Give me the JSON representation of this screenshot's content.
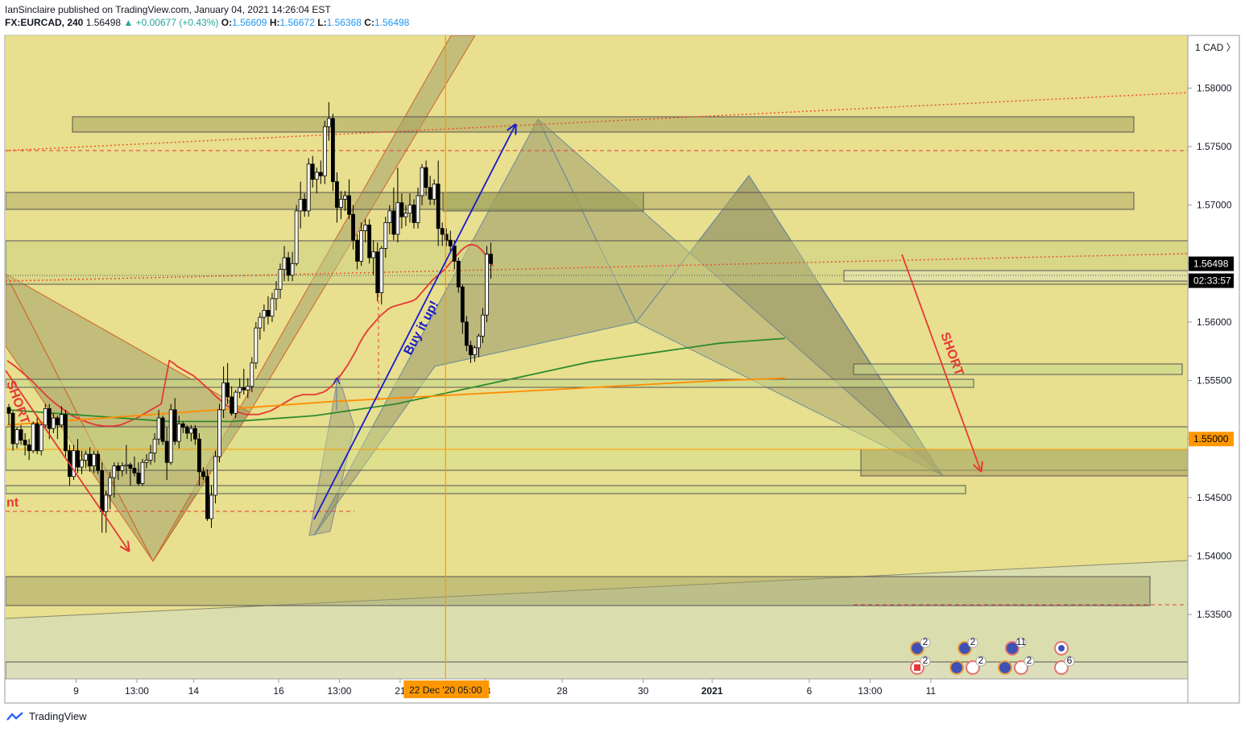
{
  "header": {
    "publisher_line": "IanSinclaire published on TradingView.com, January 04, 2021 14:26:04 EST",
    "symbol": "FX:EURCAD, 240",
    "last": "1.56498",
    "change": "▲ +0.00677 (+0.43%)",
    "o_label": "O:",
    "o": "1.56609",
    "h_label": "H:",
    "h": "1.56672",
    "l_label": "L:",
    "l": "1.56368",
    "c_label": "C:",
    "c": "1.56498"
  },
  "footer": {
    "brand": "TradingView"
  },
  "colors": {
    "background": "#e8df8f",
    "up_candle": "#ffffff",
    "down_candle": "#000000",
    "ma_red": "#e53935",
    "ma_green": "#2e8b2e",
    "ma_orange": "#ff8c00",
    "trend_blue": "#1a1acc",
    "short_red": "#e53935"
  },
  "chart_data": {
    "type": "candlestick",
    "currency": "CAD",
    "currency_label": "1  CAD  〉",
    "ylim": [
      1.5295,
      1.5845
    ],
    "y_ticks": [
      "1.58000",
      "1.57500",
      "1.57000",
      "1.56500",
      "1.56000",
      "1.55500",
      "1.55000",
      "1.54500",
      "1.54000",
      "1.53500"
    ],
    "y_tick_values": [
      1.58,
      1.575,
      1.57,
      1.565,
      1.56,
      1.555,
      1.55,
      1.545,
      1.54,
      1.535
    ],
    "x_ticks": [
      {
        "i": 17,
        "label": "9"
      },
      {
        "i": 32,
        "label": "13:00"
      },
      {
        "i": 46,
        "label": "14"
      },
      {
        "i": 67,
        "label": "16"
      },
      {
        "i": 82,
        "label": "13:00"
      },
      {
        "i": 97,
        "label": "21"
      },
      {
        "i": 118,
        "label": "23"
      },
      {
        "i": 137,
        "label": "28"
      },
      {
        "i": 157,
        "label": "30"
      },
      {
        "i": 174,
        "label": "2021"
      },
      {
        "i": 198,
        "label": "6"
      },
      {
        "i": 213,
        "label": "13:00"
      },
      {
        "i": 228,
        "label": "11"
      }
    ],
    "crosshair": {
      "i": 109,
      "label": "22 Dec '20   05:00"
    },
    "price_labels": [
      {
        "value": 1.56498,
        "label": "1.56498"
      },
      {
        "value": 1.5638,
        "label": "02:33:57"
      },
      {
        "value": 1.55,
        "label": "1.55000"
      }
    ],
    "candles": [
      [
        1.5527,
        1.553,
        1.5512,
        1.5522
      ],
      [
        1.5522,
        1.5524,
        1.549,
        1.5496
      ],
      [
        1.5496,
        1.551,
        1.5492,
        1.5508
      ],
      [
        1.5508,
        1.5512,
        1.5495,
        1.5499
      ],
      [
        1.5499,
        1.5505,
        1.5486,
        1.5495
      ],
      [
        1.5495,
        1.55,
        1.5482,
        1.549
      ],
      [
        1.549,
        1.5515,
        1.5488,
        1.5513
      ],
      [
        1.5513,
        1.552,
        1.5487,
        1.549
      ],
      [
        1.549,
        1.5515,
        1.5486,
        1.5512
      ],
      [
        1.5512,
        1.553,
        1.5508,
        1.5526
      ],
      [
        1.5526,
        1.553,
        1.55,
        1.5509
      ],
      [
        1.5509,
        1.5522,
        1.5505,
        1.5518
      ],
      [
        1.5518,
        1.552,
        1.55,
        1.5512
      ],
      [
        1.5512,
        1.5528,
        1.551,
        1.5521
      ],
      [
        1.5521,
        1.5525,
        1.5485,
        1.549
      ],
      [
        1.549,
        1.5495,
        1.546,
        1.5468
      ],
      [
        1.5468,
        1.5495,
        1.5465,
        1.549
      ],
      [
        1.549,
        1.55,
        1.5471,
        1.5476
      ],
      [
        1.5476,
        1.549,
        1.547,
        1.5482
      ],
      [
        1.5482,
        1.549,
        1.5475,
        1.5487
      ],
      [
        1.5487,
        1.5493,
        1.5472,
        1.5477
      ],
      [
        1.5477,
        1.549,
        1.5471,
        1.5487
      ],
      [
        1.5487,
        1.549,
        1.547,
        1.5473
      ],
      [
        1.5473,
        1.548,
        1.542,
        1.5438
      ],
      [
        1.5438,
        1.5456,
        1.542,
        1.5452
      ],
      [
        1.5452,
        1.5472,
        1.544,
        1.5467
      ],
      [
        1.5467,
        1.548,
        1.545,
        1.5477
      ],
      [
        1.5477,
        1.548,
        1.5465,
        1.5473
      ],
      [
        1.5473,
        1.548,
        1.5468,
        1.5477
      ],
      [
        1.5477,
        1.5495,
        1.547,
        1.5478
      ],
      [
        1.5478,
        1.548,
        1.546,
        1.5475
      ],
      [
        1.5475,
        1.5485,
        1.5468,
        1.5471
      ],
      [
        1.5471,
        1.548,
        1.546,
        1.5462
      ],
      [
        1.5462,
        1.5483,
        1.546,
        1.548
      ],
      [
        1.548,
        1.5487,
        1.5475,
        1.5482
      ],
      [
        1.5482,
        1.5495,
        1.5478,
        1.5488
      ],
      [
        1.5488,
        1.5505,
        1.548,
        1.55
      ],
      [
        1.55,
        1.5525,
        1.5495,
        1.5518
      ],
      [
        1.5518,
        1.552,
        1.5495,
        1.5498
      ],
      [
        1.5498,
        1.551,
        1.5465,
        1.548
      ],
      [
        1.548,
        1.553,
        1.5478,
        1.5525
      ],
      [
        1.5525,
        1.5535,
        1.5495,
        1.5498
      ],
      [
        1.5498,
        1.552,
        1.5492,
        1.5513
      ],
      [
        1.5513,
        1.5515,
        1.5505,
        1.551
      ],
      [
        1.551,
        1.5512,
        1.55,
        1.5505
      ],
      [
        1.5505,
        1.5512,
        1.5498,
        1.5509
      ],
      [
        1.5509,
        1.5512,
        1.5495,
        1.55
      ],
      [
        1.55,
        1.5505,
        1.546,
        1.5472
      ],
      [
        1.5472,
        1.5476,
        1.5465,
        1.5468
      ],
      [
        1.5468,
        1.5474,
        1.543,
        1.5432
      ],
      [
        1.5432,
        1.546,
        1.5424,
        1.5452
      ],
      [
        1.5452,
        1.549,
        1.5445,
        1.5485
      ],
      [
        1.5485,
        1.553,
        1.548,
        1.5525
      ],
      [
        1.5525,
        1.5562,
        1.5518,
        1.5548
      ],
      [
        1.5548,
        1.5565,
        1.553,
        1.5536
      ],
      [
        1.5536,
        1.5545,
        1.552,
        1.5522
      ],
      [
        1.5522,
        1.5542,
        1.5518,
        1.554
      ],
      [
        1.554,
        1.5552,
        1.5535,
        1.5544
      ],
      [
        1.5544,
        1.556,
        1.5538,
        1.5542
      ],
      [
        1.5542,
        1.5552,
        1.5535,
        1.5545
      ],
      [
        1.5545,
        1.557,
        1.554,
        1.5565
      ],
      [
        1.5565,
        1.56,
        1.556,
        1.5595
      ],
      [
        1.5595,
        1.5608,
        1.5585,
        1.5604
      ],
      [
        1.5604,
        1.5615,
        1.5592,
        1.561
      ],
      [
        1.561,
        1.5622,
        1.5598,
        1.5605
      ],
      [
        1.5605,
        1.5625,
        1.56,
        1.562
      ],
      [
        1.562,
        1.5635,
        1.561,
        1.5628
      ],
      [
        1.5628,
        1.565,
        1.562,
        1.5645
      ],
      [
        1.5645,
        1.5665,
        1.5635,
        1.5655
      ],
      [
        1.5655,
        1.566,
        1.5635,
        1.564
      ],
      [
        1.564,
        1.566,
        1.5635,
        1.565
      ],
      [
        1.565,
        1.57,
        1.5648,
        1.5695
      ],
      [
        1.5695,
        1.572,
        1.568,
        1.5705
      ],
      [
        1.5705,
        1.571,
        1.569,
        1.5695
      ],
      [
        1.5695,
        1.574,
        1.569,
        1.5735
      ],
      [
        1.5735,
        1.5742,
        1.5715,
        1.5722
      ],
      [
        1.5722,
        1.5732,
        1.571,
        1.5728
      ],
      [
        1.5728,
        1.5738,
        1.5718,
        1.5725
      ],
      [
        1.5725,
        1.5772,
        1.5718,
        1.5767
      ],
      [
        1.5767,
        1.5788,
        1.5755,
        1.5774
      ],
      [
        1.5774,
        1.5778,
        1.5712,
        1.572
      ],
      [
        1.572,
        1.5728,
        1.5685,
        1.5698
      ],
      [
        1.5698,
        1.5712,
        1.5688,
        1.5705
      ],
      [
        1.5705,
        1.5712,
        1.5695,
        1.5708
      ],
      [
        1.5708,
        1.5722,
        1.5688,
        1.5692
      ],
      [
        1.5692,
        1.57,
        1.5662,
        1.567
      ],
      [
        1.567,
        1.5675,
        1.5645,
        1.5652
      ],
      [
        1.5652,
        1.5685,
        1.5648,
        1.5678
      ],
      [
        1.5678,
        1.5688,
        1.5668,
        1.5683
      ],
      [
        1.5683,
        1.5688,
        1.565,
        1.5655
      ],
      [
        1.5655,
        1.567,
        1.564,
        1.566
      ],
      [
        1.566,
        1.5668,
        1.5618,
        1.5625
      ],
      [
        1.5625,
        1.5665,
        1.5615,
        1.5663
      ],
      [
        1.5663,
        1.569,
        1.5655,
        1.5685
      ],
      [
        1.5685,
        1.57,
        1.5675,
        1.5695
      ],
      [
        1.5695,
        1.5715,
        1.567,
        1.5675
      ],
      [
        1.5675,
        1.5732,
        1.5668,
        1.5702
      ],
      [
        1.5702,
        1.571,
        1.568,
        1.569
      ],
      [
        1.569,
        1.57,
        1.5682,
        1.5693
      ],
      [
        1.5693,
        1.571,
        1.5685,
        1.57
      ],
      [
        1.57,
        1.5705,
        1.568,
        1.5685
      ],
      [
        1.5685,
        1.5715,
        1.568,
        1.5708
      ],
      [
        1.5708,
        1.5735,
        1.57,
        1.5732
      ],
      [
        1.5732,
        1.5738,
        1.5708,
        1.5715
      ],
      [
        1.5715,
        1.5725,
        1.57,
        1.5705
      ],
      [
        1.5705,
        1.5722,
        1.57,
        1.5718
      ],
      [
        1.5718,
        1.5738,
        1.5665,
        1.568
      ],
      [
        1.568,
        1.5685,
        1.5665,
        1.5675
      ],
      [
        1.5675,
        1.568,
        1.5665,
        1.567
      ],
      [
        1.567,
        1.5678,
        1.566,
        1.5665
      ],
      [
        1.5665,
        1.567,
        1.5645,
        1.5652
      ],
      [
        1.5652,
        1.5655,
        1.5625,
        1.563
      ],
      [
        1.563,
        1.5632,
        1.559,
        1.56
      ],
      [
        1.56,
        1.5605,
        1.5575,
        1.558
      ],
      [
        1.558,
        1.5584,
        1.5565,
        1.5572
      ],
      [
        1.5572,
        1.558,
        1.5566,
        1.5578
      ],
      [
        1.5578,
        1.559,
        1.557,
        1.5588
      ],
      [
        1.5588,
        1.5612,
        1.5582,
        1.5606
      ],
      [
        1.5606,
        1.5665,
        1.56,
        1.5658
      ],
      [
        1.5658,
        1.5668,
        1.5637,
        1.565
      ]
    ],
    "ma_red": [
      1.5567,
      1.5565,
      1.5562,
      1.556,
      1.5558,
      1.5556,
      1.5554,
      1.5551,
      1.5548,
      1.5545,
      1.5542,
      1.5538,
      1.5535,
      1.5532,
      1.5529,
      1.5527,
      1.5525,
      1.5523,
      1.5522,
      1.5521,
      1.5521,
      1.5521,
      1.5521,
      1.5522,
      1.5523,
      1.5524,
      1.5526,
      1.5528,
      1.553,
      1.5532,
      1.5534,
      1.5536,
      1.5537,
      1.5538,
      1.5538,
      1.5538,
      1.5538,
      1.5539,
      1.554,
      1.5542,
      1.5545,
      1.5549,
      1.5553,
      1.5558,
      1.5563,
      1.5569,
      1.5575,
      1.5582,
      1.5588,
      1.5593,
      1.5597,
      1.5601,
      1.5605,
      1.5608,
      1.5611,
      1.5613,
      1.5614,
      1.5615,
      1.5616,
      1.5617,
      1.5618,
      1.562,
      1.5624,
      1.5628,
      1.5632,
      1.5636,
      1.5639,
      1.5642,
      1.5645,
      1.5649,
      1.5653,
      1.5657,
      1.5661,
      1.5664,
      1.5666,
      1.5666,
      1.5665,
      1.5662,
      1.5658,
      1.5652,
      1.5648
    ],
    "ma_red_start": 40,
    "ma_green_start": 0,
    "ma_green": [
      1.5525,
      1.5524,
      1.5523,
      1.5522,
      1.5521,
      1.552,
      1.5519,
      1.5518,
      1.5517,
      1.5516,
      1.5515,
      1.5515,
      1.5515,
      1.5515,
      1.5515,
      1.5516,
      1.5517,
      1.5518,
      1.5519,
      1.552,
      1.5522,
      1.5524,
      1.5526,
      1.5528,
      1.553,
      1.5533,
      1.5536,
      1.5539,
      1.5542,
      1.5545,
      1.5548,
      1.5551,
      1.5554,
      1.5557,
      1.556,
      1.5563,
      1.5566,
      1.5568,
      1.557,
      1.5572,
      1.5574,
      1.5576,
      1.5578,
      1.558,
      1.5582,
      1.5583,
      1.5584,
      1.5585,
      1.5586
    ],
    "ma_green_step": 4,
    "ma_orange": [
      1.5512,
      1.5516,
      1.552,
      1.5524,
      1.5528,
      1.5532,
      1.5535,
      1.5538,
      1.5541,
      1.5544,
      1.5547,
      1.555,
      1.5552
    ],
    "ma_orange_step": 16,
    "annotations": [
      "SHORT",
      "SHORT",
      "Buy it up!",
      "nt"
    ],
    "event_badges": [
      "2",
      "2",
      "2",
      "2",
      "11",
      "2",
      "6"
    ]
  }
}
